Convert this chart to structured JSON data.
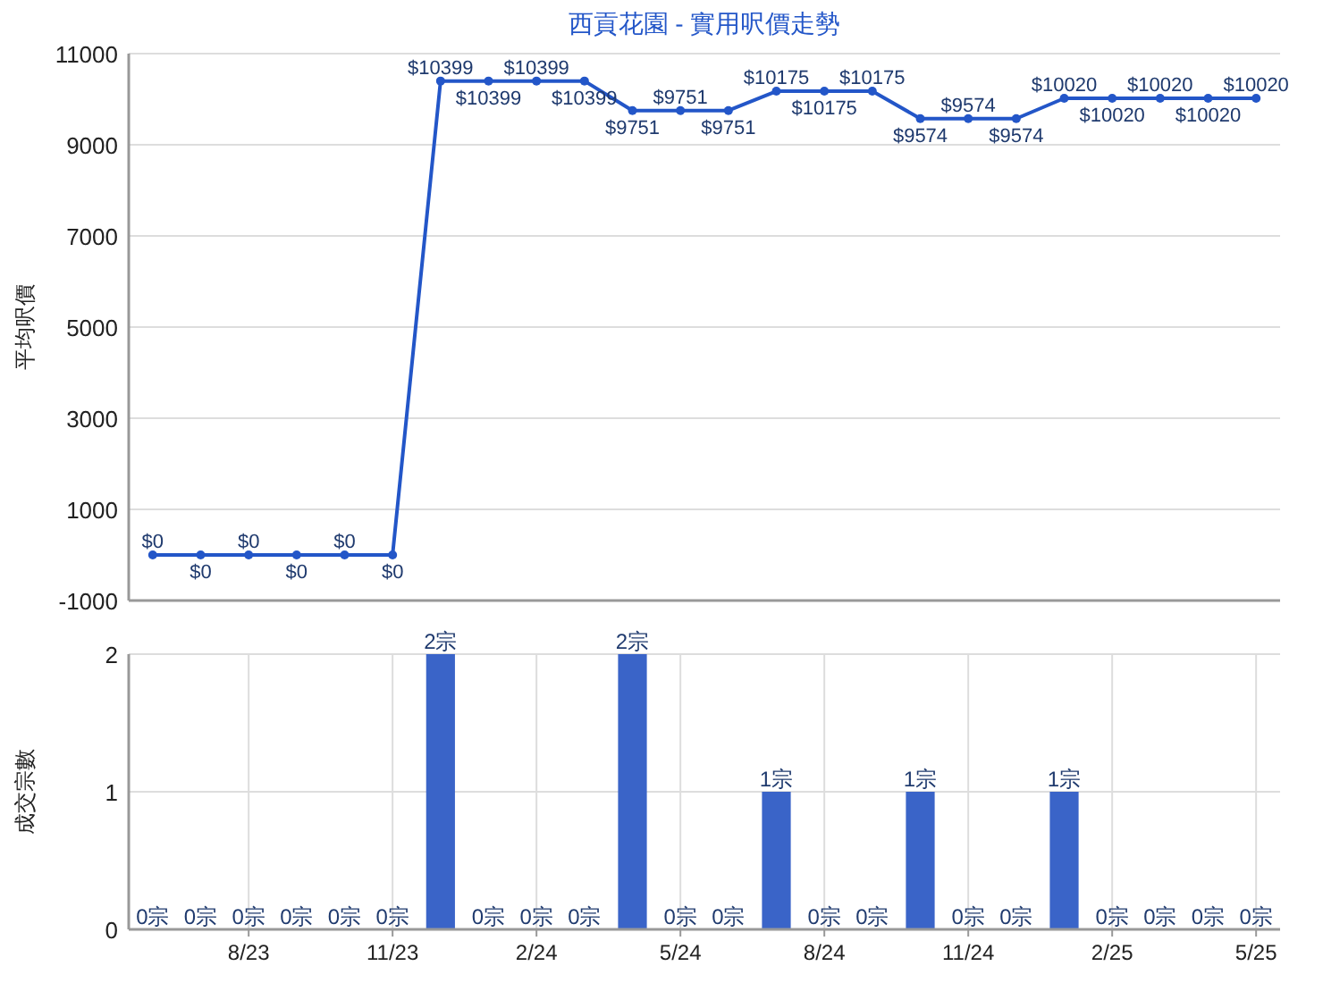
{
  "chart_data": [
    {
      "type": "line",
      "title": "西貢花園 - 實用呎價走勢",
      "ylabel": "平均呎價",
      "categories": [
        null,
        null,
        null,
        null,
        null,
        null,
        null,
        null,
        null,
        null,
        null,
        null,
        null,
        null,
        null,
        null,
        null,
        null,
        null,
        null,
        null,
        null,
        null,
        null
      ],
      "series": [
        {
          "color": "#2356c8",
          "values": [
            0,
            0,
            0,
            0,
            0,
            0,
            10399,
            10399,
            10399,
            10399,
            9751,
            9751,
            9751,
            10175,
            10175,
            10175,
            9574,
            9574,
            9574,
            10020,
            10020,
            10020,
            10020,
            10020
          ],
          "value_labels": [
            "$0",
            "$0",
            "$0",
            "$0",
            "$0",
            "$0",
            "$10399",
            "$10399",
            "$10399",
            "$10399",
            "$9751",
            "$9751",
            "$9751",
            "$10175",
            "$10175",
            "$10175",
            "$9574",
            "$9574",
            "$9574",
            "$10020",
            "$10020",
            "$10020",
            "$10020",
            "$10020"
          ]
        }
      ],
      "ylim": [
        -1000,
        11000
      ],
      "yticks": [
        -1000,
        1000,
        3000,
        5000,
        7000,
        9000,
        11000
      ],
      "grid": true,
      "marker": "circle",
      "tick_labels": "y"
    },
    {
      "type": "bar",
      "ylabel": "成交宗數",
      "categories": [
        null,
        null,
        "8/23",
        null,
        null,
        "11/23",
        null,
        null,
        "2/24",
        null,
        null,
        "5/24",
        null,
        null,
        "8/24",
        null,
        null,
        "11/24",
        null,
        null,
        "2/25",
        null,
        null,
        "5/25"
      ],
      "series": [
        {
          "color": "#3a64c8",
          "values": [
            0,
            0,
            0,
            0,
            0,
            0,
            2,
            0,
            0,
            0,
            2,
            0,
            0,
            1,
            0,
            0,
            1,
            0,
            0,
            1,
            0,
            0,
            0,
            0
          ],
          "value_labels": [
            "0宗",
            "0宗",
            "0宗",
            "0宗",
            "0宗",
            "0宗",
            "2宗",
            "0宗",
            "0宗",
            "0宗",
            "2宗",
            "0宗",
            "0宗",
            "1宗",
            "0宗",
            "0宗",
            "1宗",
            "0宗",
            "0宗",
            "1宗",
            "0宗",
            "0宗",
            "0宗",
            "0宗"
          ]
        }
      ],
      "ylim": [
        0,
        2
      ],
      "yticks": [
        0,
        1,
        2
      ],
      "grid": true
    }
  ]
}
